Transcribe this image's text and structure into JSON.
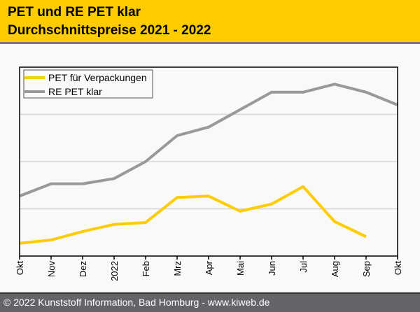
{
  "header": {
    "title_line1": "PET und RE PET klar",
    "title_line2": "Durchschnittspreise 2021 - 2022",
    "background_color": "#ffcc00"
  },
  "footer": {
    "text": "© 2022 Kunststoff Information, Bad Homburg - www.kiweb.de"
  },
  "chart_data": {
    "type": "line",
    "title": "PET und RE PET klar – Durchschnittspreise 2021 - 2022",
    "xlabel": "",
    "ylabel": "",
    "y_axis_labels_shown": false,
    "ylim": [
      0,
      4
    ],
    "y_gridlines": [
      1,
      2,
      3
    ],
    "grid": true,
    "legend_position": "top-left",
    "categories": [
      "Okt",
      "Nov",
      "Dez",
      "2022",
      "Feb",
      "Mrz",
      "Apr",
      "Mai",
      "Jun",
      "Jul",
      "Aug",
      "Sep",
      "Okt"
    ],
    "series": [
      {
        "name": "PET für Verpackungen",
        "color": "#ffcc00",
        "values": [
          0.27,
          0.34,
          0.52,
          0.67,
          0.71,
          1.24,
          1.27,
          0.95,
          1.1,
          1.47,
          0.73,
          0.41,
          null
        ]
      },
      {
        "name": "RE PET klar",
        "color": "#999999",
        "values": [
          1.27,
          1.53,
          1.53,
          1.64,
          2.0,
          2.55,
          2.73,
          3.1,
          3.47,
          3.47,
          3.64,
          3.47,
          3.2
        ]
      }
    ]
  }
}
